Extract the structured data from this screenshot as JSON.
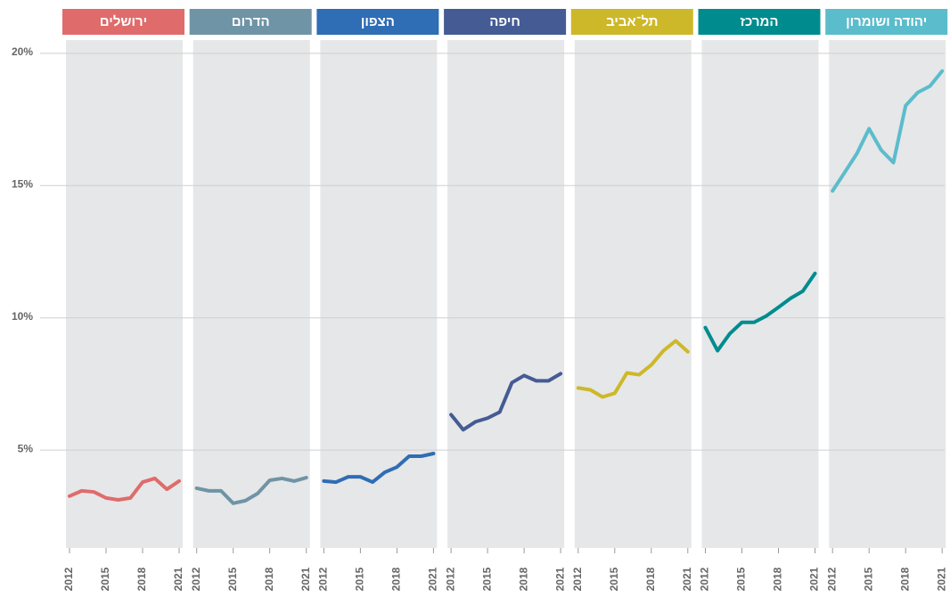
{
  "chart_data": {
    "type": "line",
    "layout": "small-multiples",
    "x": [
      2012,
      2013,
      2014,
      2015,
      2016,
      2017,
      2018,
      2019,
      2020,
      2021
    ],
    "xticks": [
      2012,
      2015,
      2018,
      2021
    ],
    "ylim": [
      1.3,
      20.5
    ],
    "yticks": [
      {
        "value": 5,
        "label": "5%"
      },
      {
        "value": 10,
        "label": "10%"
      },
      {
        "value": 15,
        "label": "15%"
      },
      {
        "value": 20,
        "label": "20%"
      }
    ],
    "grid": true,
    "series": [
      {
        "name": "ירושלים",
        "color": "#e06b6b",
        "values": [
          3.26,
          3.46,
          3.42,
          3.19,
          3.12,
          3.19,
          3.79,
          3.93,
          3.52,
          3.83
        ]
      },
      {
        "name": "הדרום",
        "color": "#6f94a6",
        "values": [
          3.56,
          3.46,
          3.46,
          2.99,
          3.09,
          3.36,
          3.86,
          3.93,
          3.83,
          3.96
        ]
      },
      {
        "name": "הצפון",
        "color": "#2f6db5",
        "values": [
          3.83,
          3.79,
          3.99,
          3.99,
          3.79,
          4.16,
          4.36,
          4.77,
          4.77,
          4.87
        ]
      },
      {
        "name": "חיפה",
        "color": "#455b94",
        "values": [
          6.34,
          5.77,
          6.07,
          6.21,
          6.44,
          7.55,
          7.82,
          7.62,
          7.62,
          7.89
        ]
      },
      {
        "name": "תל־אביב",
        "color": "#cdb82a",
        "values": [
          7.35,
          7.28,
          7.01,
          7.15,
          7.92,
          7.85,
          8.22,
          8.76,
          9.13,
          8.72
        ]
      },
      {
        "name": "המרכז",
        "color": "#008c8f",
        "values": [
          9.63,
          8.76,
          9.4,
          9.83,
          9.83,
          10.07,
          10.4,
          10.74,
          11.01,
          11.68
        ]
      },
      {
        "name": "יהודה ושומרון",
        "color": "#5bbccc",
        "values": [
          14.8,
          15.5,
          16.21,
          17.15,
          16.34,
          15.87,
          18.02,
          18.52,
          18.76,
          19.33
        ]
      }
    ]
  }
}
